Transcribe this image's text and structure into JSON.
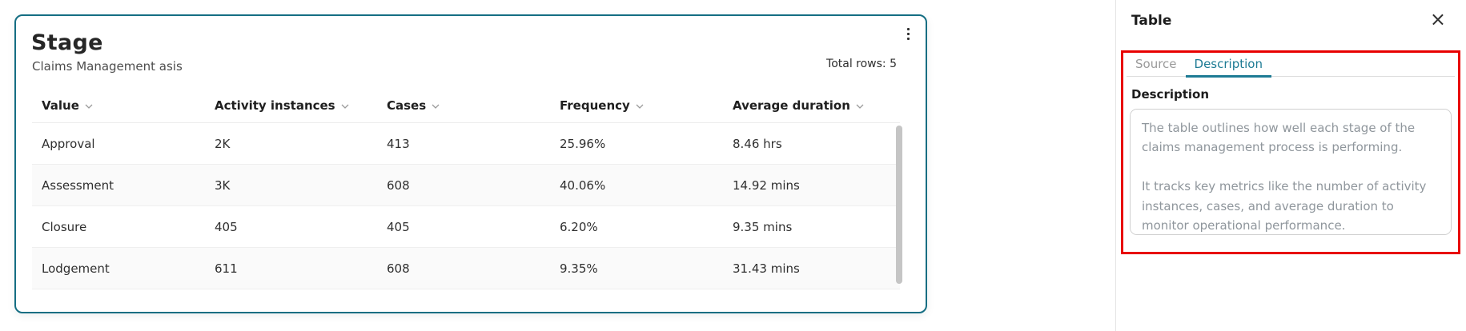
{
  "colors": {
    "card_border_teal": "#156e83",
    "tab_active_teal": "#1d7b94",
    "annotation_red": "#e80000",
    "row_shaded": "#fafafa",
    "scrollbar_thumb": "#c5c5c5"
  },
  "card": {
    "title": "Stage",
    "subtitle": "Claims Management asis",
    "total_rows_label": "Total rows: 5",
    "kebab_icon": "kebab-menu",
    "table": {
      "columns": [
        "Value",
        "Activity instances",
        "Cases",
        "Frequency",
        "Average duration"
      ],
      "sort_icon": "chevron-down",
      "rows": [
        [
          "Approval",
          "2K",
          "413",
          "25.96%",
          "8.46 hrs"
        ],
        [
          "Assessment",
          "3K",
          "608",
          "40.06%",
          "14.92 mins"
        ],
        [
          "Closure",
          "405",
          "405",
          "6.20%",
          "9.35 mins"
        ],
        [
          "Lodgement",
          "611",
          "608",
          "9.35%",
          "31.43 mins"
        ]
      ]
    }
  },
  "panel": {
    "title": "Table",
    "close_glyph": "×",
    "tabs": [
      {
        "label": "Source",
        "active": false
      },
      {
        "label": "Description",
        "active": true
      }
    ],
    "description_label": "Description",
    "description_text": "The table outlines how well each stage of the claims management process is performing.\n\nIt tracks key metrics like the number of activity instances, cases, and average duration to monitor operational performance."
  }
}
